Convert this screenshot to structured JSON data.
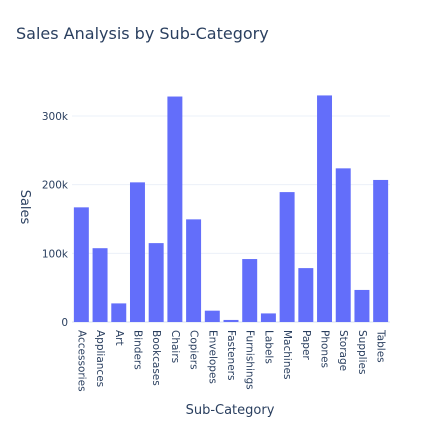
{
  "chart_data": {
    "type": "bar",
    "title": "Sales Analysis by Sub-Category",
    "xlabel": "Sub-Category",
    "ylabel": "Sales",
    "categories": [
      "Accessories",
      "Appliances",
      "Art",
      "Binders",
      "Bookcases",
      "Chairs",
      "Copiers",
      "Envelopes",
      "Fasteners",
      "Furnishings",
      "Labels",
      "Machines",
      "Paper",
      "Phones",
      "Storage",
      "Supplies",
      "Tables"
    ],
    "values": [
      167000,
      107500,
      27100,
      203400,
      114900,
      328400,
      149500,
      16500,
      3000,
      91700,
      12500,
      189200,
      78500,
      330000,
      223800,
      46700,
      206900
    ],
    "ylim": [
      0,
      335000
    ],
    "yticks": [
      0,
      100000,
      200000,
      300000
    ],
    "ytick_labels": [
      "0",
      "100k",
      "200k",
      "300k"
    ],
    "grid": true,
    "bar_color": "#636efa"
  }
}
